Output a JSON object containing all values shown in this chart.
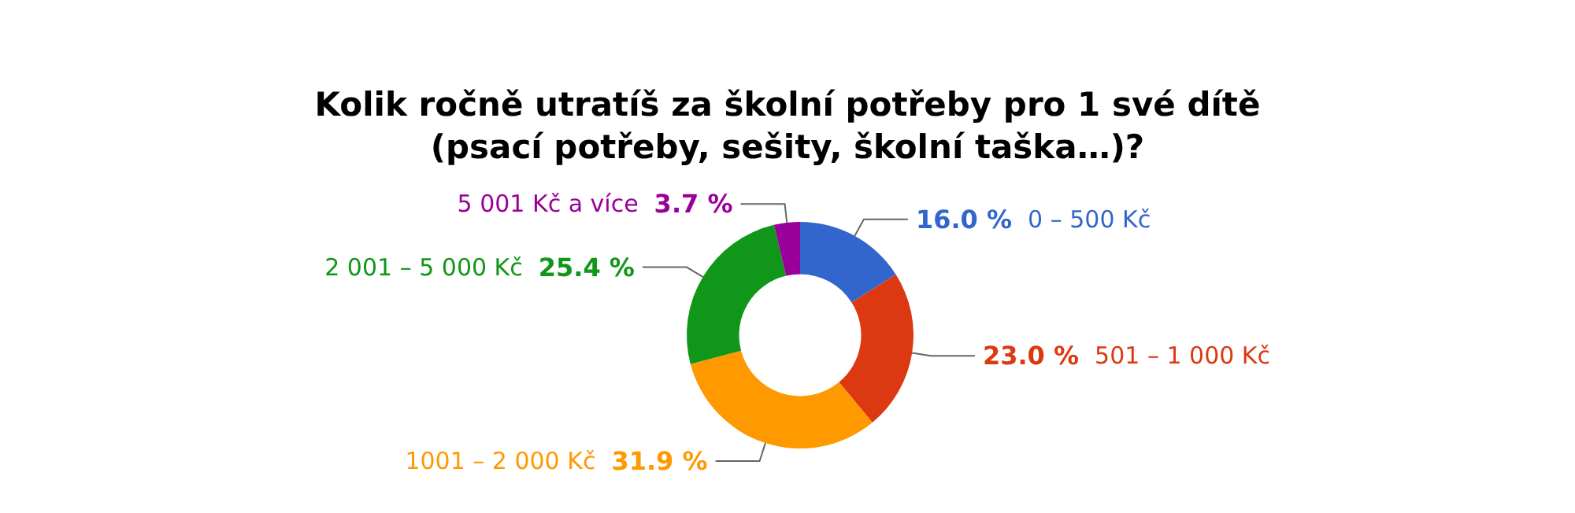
{
  "chart_data": {
    "type": "donut",
    "title": "Kolik ročně utratíš za školní potřeby pro 1 své dítě\n(psací potřeby, sešity, školní taška…)?",
    "categories": [
      "0 – 500 Kč",
      "501 – 1 000 Kč",
      "1001 – 2 000 Kč",
      "2 001 – 5 000 Kč",
      "5 001 Kč a více"
    ],
    "values": [
      16.0,
      23.0,
      31.9,
      25.4,
      3.7
    ],
    "value_labels": [
      "16.0 %",
      "23.0 %",
      "31.9 %",
      "25.4 %",
      "3.7 %"
    ],
    "colors": [
      "#3366cc",
      "#dc3912",
      "#ff9900",
      "#109618",
      "#990099"
    ],
    "legend": false
  }
}
